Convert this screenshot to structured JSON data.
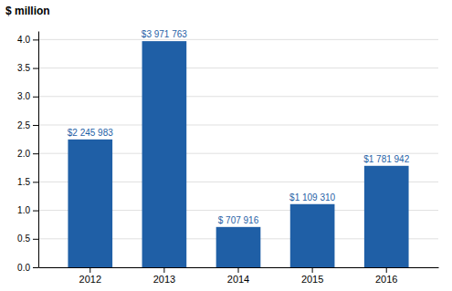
{
  "chart_data": {
    "type": "bar",
    "ylabel": "$ million",
    "categories": [
      "2012",
      "2013",
      "2014",
      "2015",
      "2016"
    ],
    "values": [
      2.245983,
      3.971763,
      0.707916,
      1.10931,
      1.781942
    ],
    "value_labels": [
      "$2 245 983",
      "$3 971 763",
      "$ 707 916",
      "$1 109 310",
      "$1 781 942"
    ],
    "color": "#1F5FA6",
    "ylim": [
      0,
      4.15
    ],
    "yticks": [
      {
        "value": 0,
        "label": "0.0"
      },
      0.5,
      {
        "value": 1,
        "label": "1.0"
      },
      1.5,
      {
        "value": 2,
        "label": "2.0"
      },
      2.5,
      {
        "value": 3,
        "label": "3.0"
      },
      3.5,
      {
        "value": 4,
        "label": "4.0"
      }
    ],
    "grid": true
  }
}
